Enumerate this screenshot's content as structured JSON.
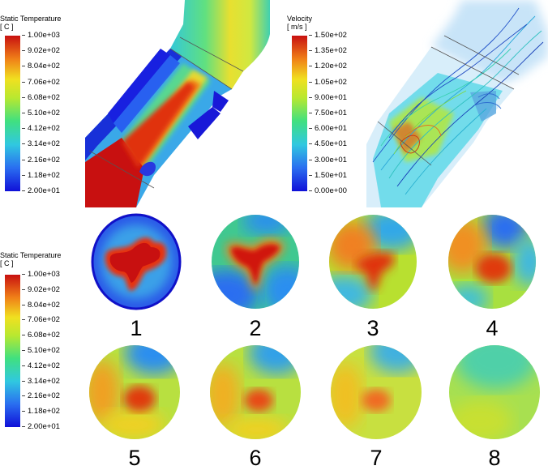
{
  "colorbars": {
    "temp_top": {
      "title_line1": "Static Temperature",
      "title_line2": "[ C ]",
      "ticks": [
        "1.00e+03",
        "9.02e+02",
        "8.04e+02",
        "7.06e+02",
        "6.08e+02",
        "5.10e+02",
        "4.12e+02",
        "3.14e+02",
        "2.16e+02",
        "1.18e+02",
        "2.00e+01"
      ]
    },
    "velocity": {
      "title_line1": "Velocity",
      "title_line2": "[ m/s ]",
      "ticks": [
        "1.50e+02",
        "1.35e+02",
        "1.20e+02",
        "1.05e+02",
        "9.00e+01",
        "7.50e+01",
        "6.00e+01",
        "4.50e+01",
        "3.00e+01",
        "1.50e+01",
        "0.00e+00"
      ]
    },
    "temp_bottom": {
      "title_line1": "Static Temperature",
      "title_line2": "[ C ]",
      "ticks": [
        "1.00e+03",
        "9.02e+02",
        "8.04e+02",
        "7.06e+02",
        "6.08e+02",
        "5.10e+02",
        "4.12e+02",
        "3.14e+02",
        "2.16e+02",
        "1.18e+02",
        "2.00e+01"
      ]
    }
  },
  "sections": [
    "1",
    "2",
    "3",
    "4",
    "5",
    "6",
    "7",
    "8"
  ]
}
